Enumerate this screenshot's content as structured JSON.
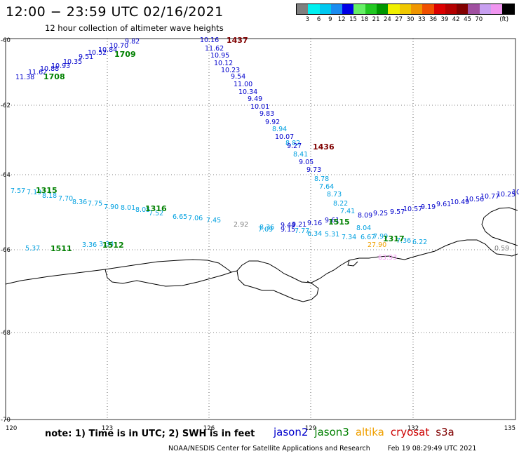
{
  "header": {
    "title": "12:00 − 23:59 UTC 02/16/2021",
    "subtitle": "12 hour collection of altimeter wave heights"
  },
  "color_scale": {
    "unit": "(ft)",
    "colors": [
      "#7f7f7f",
      "#00f0f0",
      "#00c8f0",
      "#1a8cf0",
      "#0000e6",
      "#66f066",
      "#22c822",
      "#009600",
      "#f0f000",
      "#f0c800",
      "#f09600",
      "#f05000",
      "#dc0000",
      "#b40000",
      "#820000",
      "#a050a0",
      "#c8a0f0",
      "#f096f0",
      "#000000"
    ],
    "ticks": [
      "3",
      "6",
      "9",
      "12",
      "15",
      "18",
      "21",
      "24",
      "27",
      "30",
      "33",
      "36",
      "39",
      "42",
      "45",
      "70"
    ]
  },
  "axes": {
    "lon_ticks": [
      "120",
      "123",
      "126",
      "129",
      "132",
      "135"
    ],
    "lat_ticks": [
      "-60",
      "-62",
      "-64",
      "-66",
      "-68",
      "-70"
    ]
  },
  "passes": [
    {
      "label": "1708",
      "color": "#008000"
    },
    {
      "label": "1709",
      "color": "#008000"
    },
    {
      "label": "1437",
      "color": "#800000"
    },
    {
      "label": "1436",
      "color": "#800000"
    },
    {
      "label": "1315",
      "color": "#008000"
    },
    {
      "label": "1316",
      "color": "#008000"
    },
    {
      "label": "1515",
      "color": "#008000"
    },
    {
      "label": "1317",
      "color": "#008000"
    },
    {
      "label": "1511",
      "color": "#008000"
    },
    {
      "label": "1512",
      "color": "#008000"
    }
  ],
  "observations": [
    {
      "v": "11.38",
      "c": "#0000cc"
    },
    {
      "v": "11.62",
      "c": "#0000cc"
    },
    {
      "v": "10.88",
      "c": "#0000cc"
    },
    {
      "v": "10.93",
      "c": "#0000cc"
    },
    {
      "v": "10.35",
      "c": "#0000cc"
    },
    {
      "v": "9.51",
      "c": "#0000cc"
    },
    {
      "v": "10.52",
      "c": "#0000cc"
    },
    {
      "v": "10.84",
      "c": "#0000cc"
    },
    {
      "v": "10.70",
      "c": "#0000cc"
    },
    {
      "v": "9.82",
      "c": "#0000cc"
    },
    {
      "v": "10.16",
      "c": "#0000cc"
    },
    {
      "v": "11.62",
      "c": "#0000cc"
    },
    {
      "v": "10.95",
      "c": "#0000cc"
    },
    {
      "v": "10.12",
      "c": "#0000cc"
    },
    {
      "v": "10.23",
      "c": "#0000cc"
    },
    {
      "v": "9.54",
      "c": "#0000cc"
    },
    {
      "v": "11.00",
      "c": "#0000cc"
    },
    {
      "v": "10.34",
      "c": "#0000cc"
    },
    {
      "v": "9.49",
      "c": "#0000cc"
    },
    {
      "v": "10.01",
      "c": "#0000cc"
    },
    {
      "v": "9.83",
      "c": "#0000cc"
    },
    {
      "v": "9.92",
      "c": "#0000cc"
    },
    {
      "v": "8.94",
      "c": "#00a0e0"
    },
    {
      "v": "10.07",
      "c": "#0000cc"
    },
    {
      "v": "8.82",
      "c": "#00a0e0"
    },
    {
      "v": "9.27",
      "c": "#0000cc"
    },
    {
      "v": "8.41",
      "c": "#00a0e0"
    },
    {
      "v": "9.05",
      "c": "#0000cc"
    },
    {
      "v": "9.73",
      "c": "#0000cc"
    },
    {
      "v": "8.78",
      "c": "#00a0e0"
    },
    {
      "v": "7.64",
      "c": "#00a0e0"
    },
    {
      "v": "8.73",
      "c": "#00a0e0"
    },
    {
      "v": "8.22",
      "c": "#00a0e0"
    },
    {
      "v": "7.41",
      "c": "#00a0e0"
    },
    {
      "v": "8.09",
      "c": "#0000cc"
    },
    {
      "v": "8.04",
      "c": "#00a0e0"
    },
    {
      "v": "7.57",
      "c": "#00a0e0"
    },
    {
      "v": "7.19",
      "c": "#00a0e0"
    },
    {
      "v": "8.18",
      "c": "#00a0e0"
    },
    {
      "v": "7.70",
      "c": "#00a0e0"
    },
    {
      "v": "8.36",
      "c": "#00a0e0"
    },
    {
      "v": "7.75",
      "c": "#00a0e0"
    },
    {
      "v": "7.90",
      "c": "#00a0e0"
    },
    {
      "v": "8.01",
      "c": "#00a0e0"
    },
    {
      "v": "8.05",
      "c": "#00a0e0"
    },
    {
      "v": "7.52",
      "c": "#00a0e0"
    },
    {
      "v": "6.65",
      "c": "#00a0e0"
    },
    {
      "v": "7.06",
      "c": "#00a0e0"
    },
    {
      "v": "7.45",
      "c": "#00a0e0"
    },
    {
      "v": "2.92",
      "c": "#808080"
    },
    {
      "v": "8.36",
      "c": "#00a0e0"
    },
    {
      "v": "9.44",
      "c": "#0000cc"
    },
    {
      "v": "9.21",
      "c": "#0000cc"
    },
    {
      "v": "7.09",
      "c": "#00a0e0"
    },
    {
      "v": "9.15",
      "c": "#0000cc"
    },
    {
      "v": "7.77",
      "c": "#00a0e0"
    },
    {
      "v": "9.16",
      "c": "#0000cc"
    },
    {
      "v": "9.61",
      "c": "#0000cc"
    },
    {
      "v": "6.34",
      "c": "#00a0e0"
    },
    {
      "v": "5.31",
      "c": "#00a0e0"
    },
    {
      "v": "9.25",
      "c": "#0000cc"
    },
    {
      "v": "9.57",
      "c": "#0000cc"
    },
    {
      "v": "10.57",
      "c": "#0000cc"
    },
    {
      "v": "9.19",
      "c": "#0000cc"
    },
    {
      "v": "9.61",
      "c": "#0000cc"
    },
    {
      "v": "10.49",
      "c": "#0000cc"
    },
    {
      "v": "10.56",
      "c": "#0000cc"
    },
    {
      "v": "10.77",
      "c": "#0000cc"
    },
    {
      "v": "10.25",
      "c": "#0000cc"
    },
    {
      "v": "10",
      "c": "#0000cc"
    },
    {
      "v": "7.34",
      "c": "#00a0e0"
    },
    {
      "v": "6.67",
      "c": "#00a0e0"
    },
    {
      "v": "7.99",
      "c": "#00a0e0"
    },
    {
      "v": "7.36",
      "c": "#00a0e0"
    },
    {
      "v": "6.22",
      "c": "#00a0e0"
    },
    {
      "v": "27.90",
      "c": "#f0a000"
    },
    {
      "v": "63.93",
      "c": "#f096f0"
    },
    {
      "v": "0.59",
      "c": "#808080"
    },
    {
      "v": "5.37",
      "c": "#00a0e0"
    },
    {
      "v": "3.36",
      "c": "#00a0e0"
    },
    {
      "v": "3.34",
      "c": "#00a0e0"
    }
  ],
  "legend": {
    "note": "note:  1) Time is in UTC;  2) SWH is in feet",
    "satellites": [
      {
        "name": "jason2",
        "color": "#0000cc"
      },
      {
        "name": "jason3",
        "color": "#008000"
      },
      {
        "name": "altika",
        "color": "#f0a000"
      },
      {
        "name": "cryosat",
        "color": "#cc0000"
      },
      {
        "name": "s3a",
        "color": "#800000"
      }
    ]
  },
  "footer": {
    "center": "NOAA/NESDIS Center for Satellite Applications and Research",
    "timestamp": "Feb 19 08:29:49 UTC 2021"
  }
}
